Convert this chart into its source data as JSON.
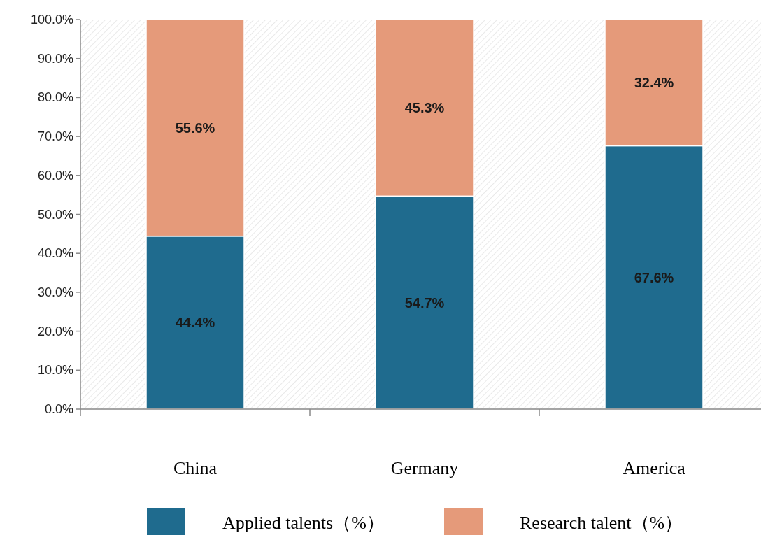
{
  "chart_data": {
    "type": "bar",
    "stacked": true,
    "categories": [
      "China",
      "Germany",
      "America"
    ],
    "series": [
      {
        "name": "Applied talents（%）",
        "color": "#1f6b8e",
        "values": [
          44.4,
          54.7,
          67.6
        ],
        "value_labels": [
          "44.4%",
          "54.7%",
          "67.6%"
        ]
      },
      {
        "name": "Research talent（%）",
        "color": "#e59a7a",
        "values": [
          55.6,
          45.3,
          32.4
        ],
        "value_labels": [
          "55.6%",
          "45.3%",
          "32.4%"
        ]
      }
    ],
    "ylim": [
      0,
      100
    ],
    "yticks": [
      {
        "value": 0,
        "label": "0.0%"
      },
      {
        "value": 10,
        "label": "10.0%"
      },
      {
        "value": 20,
        "label": "20.0%"
      },
      {
        "value": 30,
        "label": "30.0%"
      },
      {
        "value": 40,
        "label": "40.0%"
      },
      {
        "value": 50,
        "label": "50.0%"
      },
      {
        "value": 60,
        "label": "60.0%"
      },
      {
        "value": 70,
        "label": "70.0%"
      },
      {
        "value": 80,
        "label": "80.0%"
      },
      {
        "value": 90,
        "label": "90.0%"
      },
      {
        "value": 100,
        "label": "100.0%"
      }
    ],
    "legend": "bottom"
  }
}
